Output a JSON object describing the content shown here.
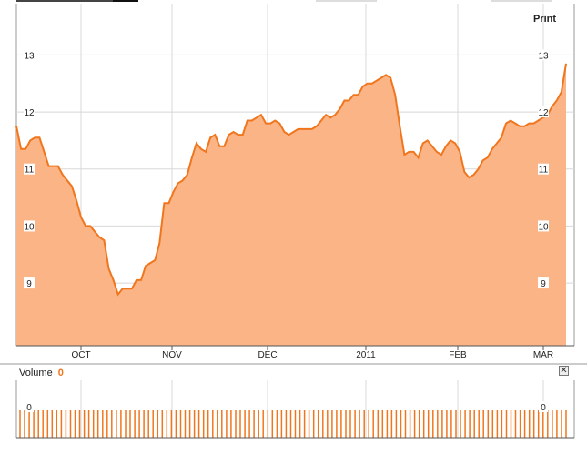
{
  "print_label": "Print",
  "volume": {
    "label": "Volume",
    "value": "0",
    "axis_label": "0"
  },
  "colors": {
    "line": "#f0761e",
    "fill": "#fbb486",
    "grid": "#d8d8d8",
    "frame": "#999999"
  },
  "close_icon": "close-icon",
  "chart_data": {
    "type": "area",
    "y_ticks": [
      "9",
      "10",
      "11",
      "12",
      "13"
    ],
    "x_ticks": [
      "OCT",
      "NOV",
      "DEC",
      "2011",
      "FEB",
      "MAR"
    ],
    "ylim": [
      7.9,
      13.9
    ],
    "grid": true,
    "values": [
      11.75,
      11.35,
      11.35,
      11.5,
      11.55,
      11.55,
      11.3,
      11.05,
      11.05,
      11.05,
      10.9,
      10.8,
      10.7,
      10.45,
      10.15,
      10.0,
      10.0,
      9.9,
      9.8,
      9.75,
      9.25,
      9.05,
      8.8,
      8.9,
      8.9,
      8.9,
      9.05,
      9.05,
      9.3,
      9.35,
      9.4,
      9.7,
      10.4,
      10.4,
      10.6,
      10.75,
      10.8,
      10.9,
      11.2,
      11.45,
      11.35,
      11.3,
      11.55,
      11.6,
      11.4,
      11.4,
      11.6,
      11.65,
      11.6,
      11.6,
      11.85,
      11.85,
      11.9,
      11.95,
      11.8,
      11.8,
      11.85,
      11.8,
      11.65,
      11.6,
      11.65,
      11.7,
      11.7,
      11.7,
      11.7,
      11.75,
      11.85,
      11.95,
      11.9,
      11.95,
      12.05,
      12.2,
      12.2,
      12.3,
      12.3,
      12.45,
      12.5,
      12.5,
      12.55,
      12.6,
      12.65,
      12.6,
      12.3,
      11.75,
      11.25,
      11.3,
      11.3,
      11.2,
      11.45,
      11.5,
      11.4,
      11.3,
      11.25,
      11.4,
      11.5,
      11.45,
      11.3,
      10.95,
      10.85,
      10.9,
      11.0,
      11.15,
      11.2,
      11.35,
      11.45,
      11.55,
      11.8,
      11.85,
      11.8,
      11.75,
      11.75,
      11.8,
      11.8,
      11.85,
      11.9,
      11.95,
      12.1,
      12.2,
      12.35,
      12.85
    ],
    "volume_values": [
      0,
      0,
      0,
      0,
      0,
      0,
      0,
      0,
      0,
      0,
      0,
      0,
      0,
      0,
      0,
      0,
      0,
      0,
      0,
      0,
      0,
      0,
      0,
      0,
      0,
      0,
      0,
      0,
      0,
      0,
      0,
      0,
      0,
      0,
      0,
      0,
      0,
      0,
      0,
      0,
      0,
      0,
      0,
      0,
      0,
      0,
      0,
      0,
      0,
      0,
      0,
      0,
      0,
      0,
      0,
      0,
      0,
      0,
      0,
      0,
      0,
      0,
      0,
      0,
      0,
      0,
      0,
      0,
      0,
      0,
      0,
      0,
      0,
      0,
      0,
      0,
      0,
      0,
      0,
      0,
      0,
      0,
      0,
      0,
      0,
      0,
      0,
      0,
      0,
      0,
      0,
      0,
      0,
      0,
      0,
      0,
      0,
      0,
      0,
      0,
      0,
      0,
      0,
      0,
      0,
      0,
      0,
      0,
      0,
      0,
      0,
      0,
      0,
      0,
      0,
      0,
      0,
      0,
      0,
      0
    ]
  }
}
